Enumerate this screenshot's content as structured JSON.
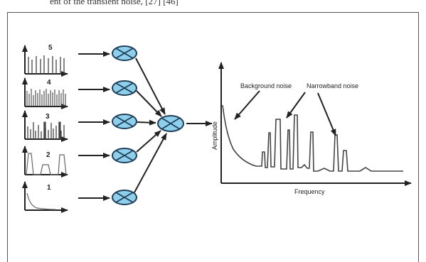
{
  "top_text": "ent of the transient noise, [27] [46]",
  "signals": [
    {
      "id": "5",
      "label": "5"
    },
    {
      "id": "4",
      "label": "4"
    },
    {
      "id": "3",
      "label": "3"
    },
    {
      "id": "2",
      "label": "2"
    },
    {
      "id": "1",
      "label": "1"
    }
  ],
  "spectrum": {
    "y_axis_label": "Amplitude",
    "x_axis_label": "Frequency",
    "annotation_background": "Background noise",
    "annotation_narrowband": "Narrowband noise"
  },
  "colors": {
    "mixer_fill": "#8ed0ec",
    "mixer_stroke": "#1f3f5a",
    "line": "#222222",
    "trace": "#444444"
  },
  "icons": {
    "mixer": "circle-with-x (multiplier) icon"
  }
}
